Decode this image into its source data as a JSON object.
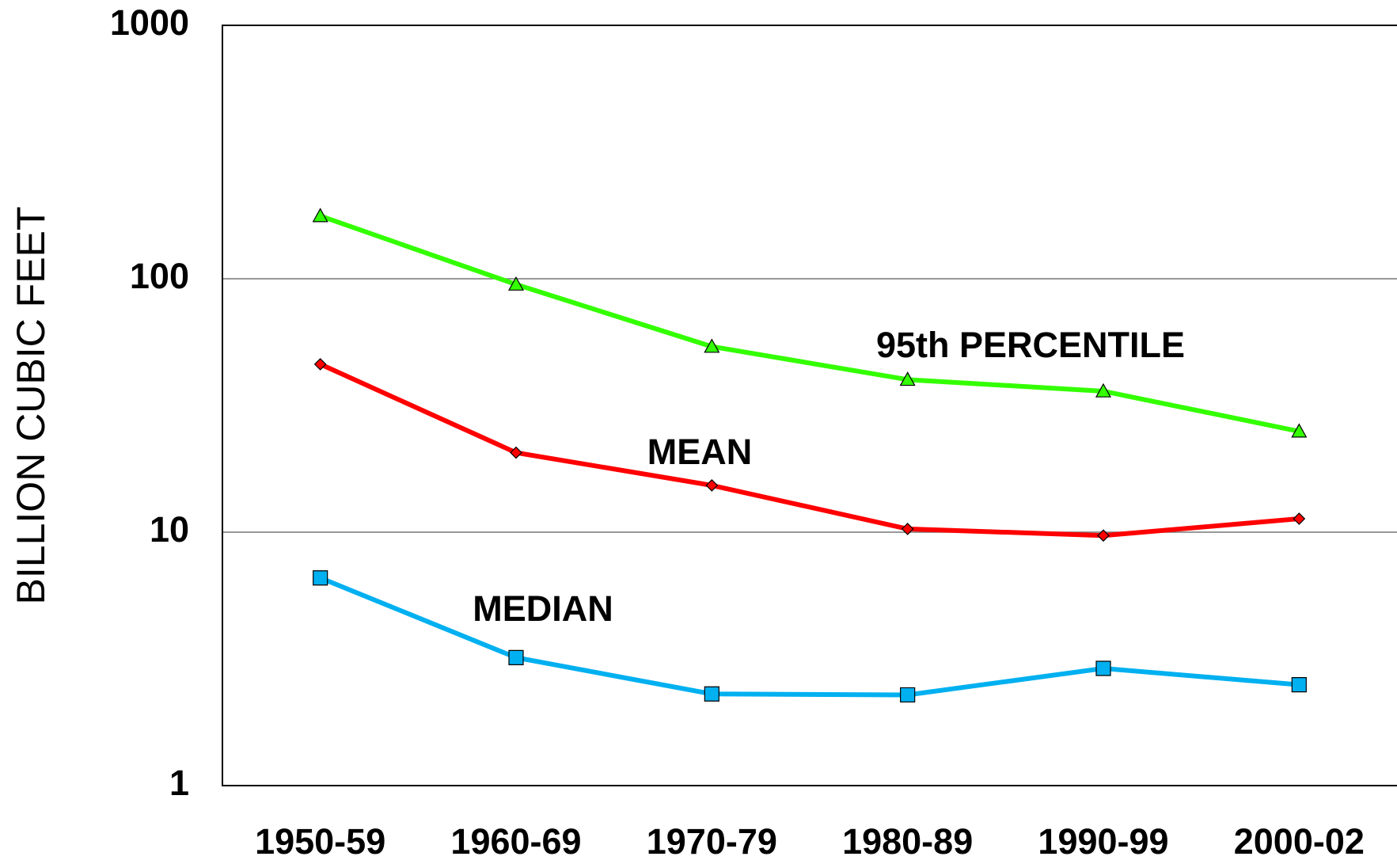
{
  "chart_data": {
    "type": "line",
    "y_label": "BILLION CUBIC FEET",
    "categories": [
      "1950-59",
      "1960-69",
      "1970-79",
      "1980-89",
      "1990-99",
      "2000-02"
    ],
    "series": [
      {
        "name": "95th PERCENTILE",
        "color": "#33ff00",
        "marker": "triangle",
        "values": [
          177,
          95,
          54,
          40,
          36,
          25
        ]
      },
      {
        "name": "MEAN",
        "color": "#ff0000",
        "marker": "diamond",
        "values": [
          46,
          20.6,
          15.3,
          10.3,
          9.7,
          11.3
        ]
      },
      {
        "name": "MEDIAN",
        "color": "#00b0f0",
        "marker": "square",
        "values": [
          6.6,
          3.2,
          2.3,
          2.28,
          2.9,
          2.5
        ]
      }
    ],
    "ylim": [
      1,
      1000
    ],
    "yticks": [
      1,
      10,
      100,
      1000
    ],
    "log_y": true,
    "grid": true
  }
}
